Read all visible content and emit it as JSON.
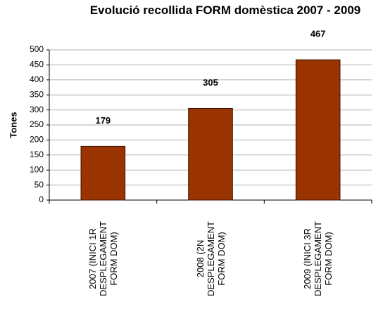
{
  "chart_data": {
    "type": "bar",
    "title": "Evolució recollida FORM domèstica 2007 - 2009",
    "y_label": "Tones",
    "categories": [
      "2007 (INICI 1R DESPLEGAMENT FORM DOM)",
      "2008 (2N DESPLEGAMENT FORM DOM)",
      "2009 (INICI 3R DESPLEGAMENT FORM DOM)"
    ],
    "values": [
      179,
      305,
      467
    ],
    "color": "#993300",
    "ylim": [
      0,
      500
    ],
    "yticks": [
      0,
      50,
      100,
      150,
      200,
      250,
      300,
      350,
      400,
      450,
      500
    ],
    "grid": true
  }
}
